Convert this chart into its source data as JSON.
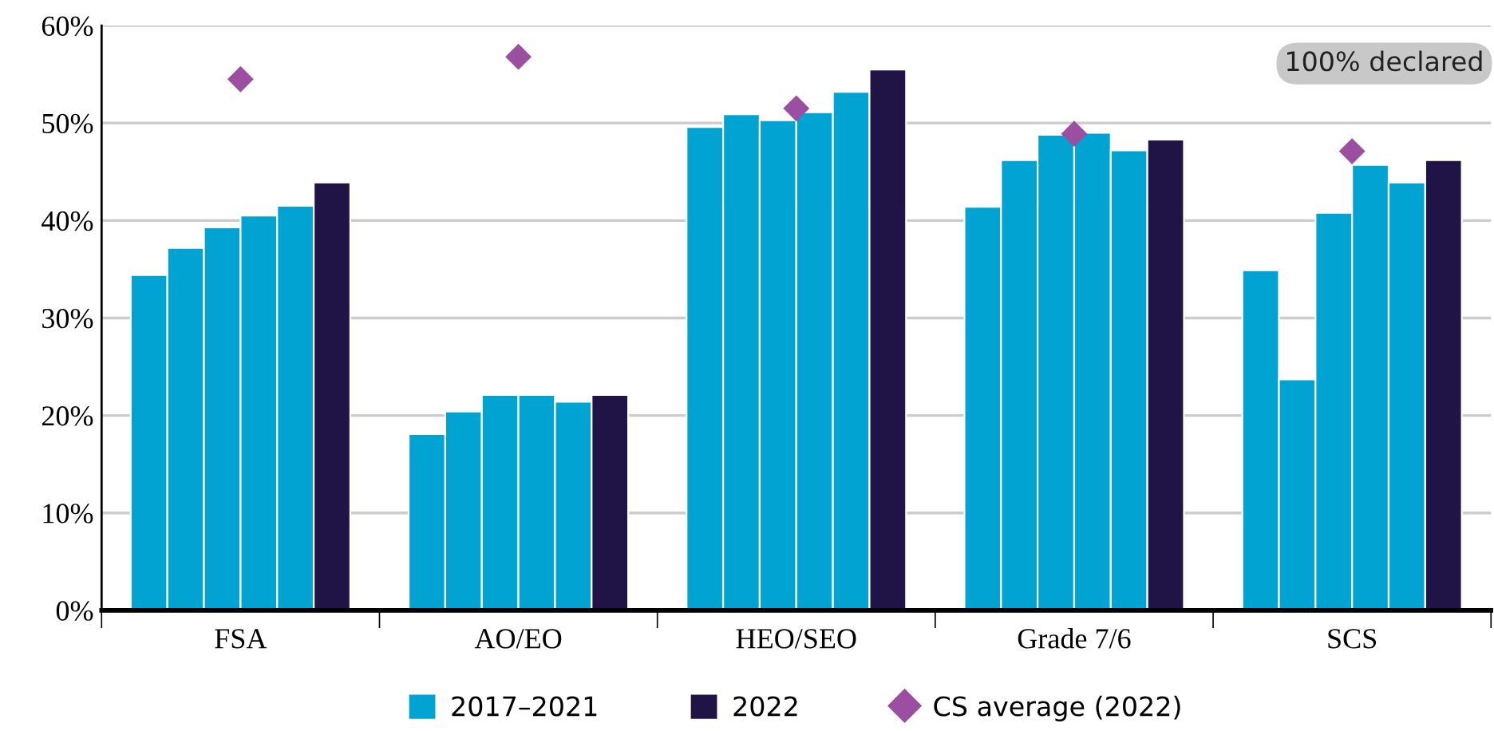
{
  "chart_data": {
    "type": "bar",
    "categories": [
      "FSA",
      "AO/EO",
      "HEO/SEO",
      "Grade 7/6",
      "SCS"
    ],
    "series": [
      {
        "name": "2017–2021",
        "color": "#00a3d2",
        "values": [
          34.4,
          18.1,
          49.6,
          41.4,
          34.9
        ]
      },
      {
        "color": "#00a3d2",
        "values": [
          37.2,
          20.4,
          50.9,
          46.2,
          23.7
        ]
      },
      {
        "color": "#00a3d2",
        "values": [
          39.3,
          22.1,
          50.3,
          48.8,
          40.8
        ]
      },
      {
        "color": "#00a3d2",
        "values": [
          40.5,
          22.1,
          51.1,
          49.0,
          45.7
        ]
      },
      {
        "color": "#00a3d2",
        "values": [
          41.5,
          21.4,
          53.2,
          47.2,
          43.9
        ]
      },
      {
        "name": "2022",
        "color": "#201446",
        "values": [
          43.9,
          22.1,
          55.5,
          48.3,
          46.2
        ]
      },
      {
        "name": "CS average (2022)",
        "type": "scatter",
        "marker": "diamond",
        "color": "#9b4fa0",
        "x": [
          "FSA",
          "AO/EO",
          "HEO/SEO",
          "Grade 7/6",
          "SCS"
        ],
        "values": [
          54.5,
          56.8,
          51.5,
          48.9,
          47.1
        ]
      }
    ],
    "ylim": [
      0,
      60
    ],
    "yticks": [
      {
        "value": 0,
        "label": "0%"
      },
      {
        "value": 10,
        "label": "10%"
      },
      {
        "value": 20,
        "label": "20%"
      },
      {
        "value": 30,
        "label": "30%"
      },
      {
        "value": 40,
        "label": "40%"
      },
      {
        "value": 50,
        "label": "50%"
      },
      {
        "value": 60,
        "label": "60%"
      }
    ],
    "grid": "y",
    "legend": "bottom",
    "annotations": [
      "100% declared"
    ]
  }
}
